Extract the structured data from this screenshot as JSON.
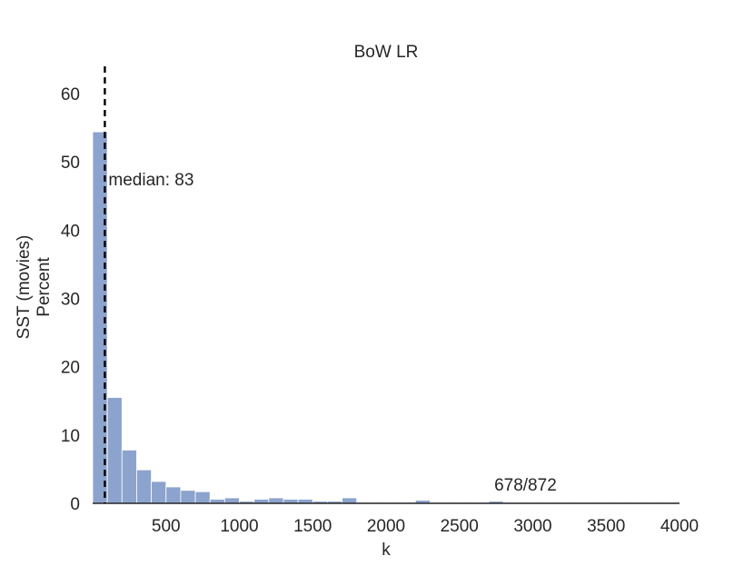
{
  "chart_data": {
    "type": "bar",
    "title": "BoW LR",
    "xlabel": "k",
    "ylabel_lines": [
      "SST (movies)",
      "Percent"
    ],
    "xlim": [
      0,
      4000
    ],
    "ylim": [
      0,
      64
    ],
    "xticks": [
      500,
      1000,
      1500,
      2000,
      2500,
      3000,
      3500,
      4000
    ],
    "yticks": [
      0,
      10,
      20,
      30,
      40,
      50,
      60
    ],
    "bin_width": 100,
    "bins": [
      {
        "x0": 0,
        "x1": 100,
        "value": 54.4
      },
      {
        "x0": 100,
        "x1": 200,
        "value": 15.5
      },
      {
        "x0": 200,
        "x1": 300,
        "value": 7.8
      },
      {
        "x0": 300,
        "x1": 400,
        "value": 4.9
      },
      {
        "x0": 400,
        "x1": 500,
        "value": 3.2
      },
      {
        "x0": 500,
        "x1": 600,
        "value": 2.4
      },
      {
        "x0": 600,
        "x1": 700,
        "value": 1.9
      },
      {
        "x0": 700,
        "x1": 800,
        "value": 1.7
      },
      {
        "x0": 800,
        "x1": 900,
        "value": 0.6
      },
      {
        "x0": 900,
        "x1": 1000,
        "value": 0.8
      },
      {
        "x0": 1000,
        "x1": 1100,
        "value": 0.3
      },
      {
        "x0": 1100,
        "x1": 1200,
        "value": 0.6
      },
      {
        "x0": 1200,
        "x1": 1300,
        "value": 0.8
      },
      {
        "x0": 1300,
        "x1": 1400,
        "value": 0.6
      },
      {
        "x0": 1400,
        "x1": 1500,
        "value": 0.6
      },
      {
        "x0": 1500,
        "x1": 1600,
        "value": 0.3
      },
      {
        "x0": 1600,
        "x1": 1700,
        "value": 0.3
      },
      {
        "x0": 1700,
        "x1": 1800,
        "value": 0.8
      },
      {
        "x0": 1800,
        "x1": 1900,
        "value": 0.15
      },
      {
        "x0": 1900,
        "x1": 2000,
        "value": 0.15
      },
      {
        "x0": 2000,
        "x1": 2100,
        "value": 0.15
      },
      {
        "x0": 2100,
        "x1": 2200,
        "value": 0.15
      },
      {
        "x0": 2200,
        "x1": 2300,
        "value": 0.45
      },
      {
        "x0": 2300,
        "x1": 2400,
        "value": 0.15
      },
      {
        "x0": 2400,
        "x1": 2500,
        "value": 0.15
      },
      {
        "x0": 2500,
        "x1": 2600,
        "value": 0.15
      },
      {
        "x0": 2600,
        "x1": 2700,
        "value": 0.15
      },
      {
        "x0": 2700,
        "x1": 2800,
        "value": 0.3
      },
      {
        "x0": 2800,
        "x1": 2900,
        "value": 0.15
      },
      {
        "x0": 2900,
        "x1": 3000,
        "value": 0.15
      },
      {
        "x0": 3000,
        "x1": 3100,
        "value": 0.15
      },
      {
        "x0": 3100,
        "x1": 3200,
        "value": 0.15
      },
      {
        "x0": 3200,
        "x1": 3300,
        "value": 0.15
      },
      {
        "x0": 3300,
        "x1": 3400,
        "value": 0.15
      },
      {
        "x0": 3400,
        "x1": 3500,
        "value": 0.15
      },
      {
        "x0": 3500,
        "x1": 3600,
        "value": 0.15
      },
      {
        "x0": 3600,
        "x1": 3700,
        "value": 0.15
      },
      {
        "x0": 3700,
        "x1": 3800,
        "value": 0.15
      },
      {
        "x0": 3800,
        "x1": 3900,
        "value": 0.15
      },
      {
        "x0": 3900,
        "x1": 4000,
        "value": 0.15
      }
    ],
    "median": {
      "value": 83,
      "label": "median: 83"
    },
    "annotation": {
      "text": "678/872",
      "x": 2950,
      "y": 2.8
    },
    "bar_color": "#8ca3cd",
    "median_line_color": "#000000",
    "grid": false,
    "legend": "none"
  }
}
